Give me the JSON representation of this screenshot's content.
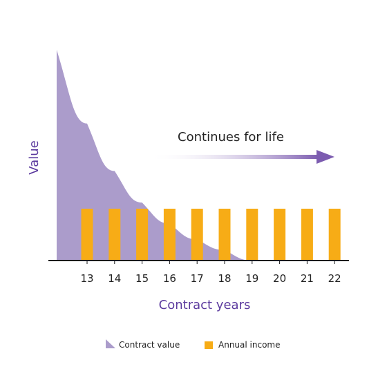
{
  "colors": {
    "curve": "#ab9ccb",
    "bar": "#f7ac16",
    "arrow": "#7c5cb0",
    "axis": "#1a1a1a",
    "label": "#5b3a9e"
  },
  "chart_data": {
    "type": "bar",
    "categories": [
      "13",
      "14",
      "15",
      "16",
      "17",
      "18",
      "19",
      "20",
      "21",
      "22"
    ],
    "series": [
      {
        "name": "Annual income",
        "values": [
          1,
          1,
          1,
          1,
          1,
          1,
          1,
          1,
          1,
          1
        ]
      }
    ],
    "area_series": {
      "name": "Contract value",
      "x": [
        12,
        13,
        14,
        15,
        16,
        17,
        18,
        19
      ],
      "values": [
        4.0,
        2.6,
        1.7,
        1.1,
        0.7,
        0.4,
        0.2,
        0.0
      ]
    },
    "xlabel": "Contract years",
    "ylabel": "Value",
    "annotation": "Continues for life",
    "legend": {
      "placement": "bottom",
      "items": [
        "Contract value",
        "Annual income"
      ]
    },
    "grid": false
  }
}
